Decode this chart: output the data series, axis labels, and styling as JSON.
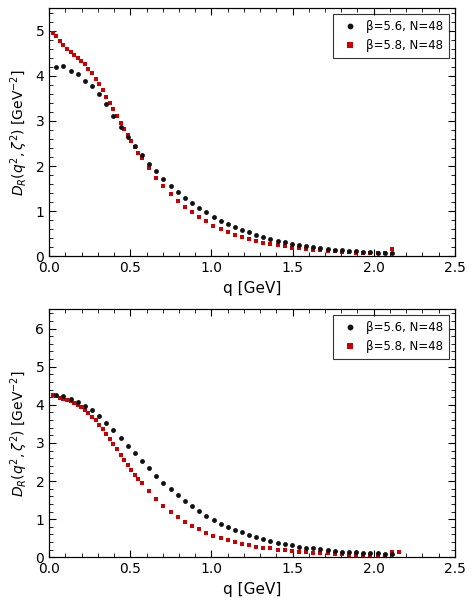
{
  "panel1": {
    "black_x": [
      0.044,
      0.088,
      0.132,
      0.175,
      0.22,
      0.262,
      0.308,
      0.352,
      0.396,
      0.44,
      0.484,
      0.528,
      0.572,
      0.617,
      0.66,
      0.704,
      0.748,
      0.792,
      0.836,
      0.88,
      0.924,
      0.968,
      1.013,
      1.057,
      1.1,
      1.144,
      1.188,
      1.232,
      1.276,
      1.32,
      1.364,
      1.408,
      1.452,
      1.496,
      1.54,
      1.584,
      1.628,
      1.672,
      1.716,
      1.76,
      1.804,
      1.848,
      1.892,
      1.936,
      1.98,
      2.024,
      2.068,
      2.112
    ],
    "black_y": [
      4.2,
      4.22,
      4.12,
      4.05,
      3.88,
      3.78,
      3.6,
      3.38,
      3.12,
      2.87,
      2.64,
      2.44,
      2.24,
      2.05,
      1.88,
      1.71,
      1.56,
      1.42,
      1.29,
      1.18,
      1.07,
      0.97,
      0.87,
      0.79,
      0.72,
      0.65,
      0.58,
      0.53,
      0.47,
      0.43,
      0.38,
      0.34,
      0.31,
      0.27,
      0.25,
      0.22,
      0.2,
      0.18,
      0.16,
      0.14,
      0.13,
      0.12,
      0.11,
      0.1,
      0.09,
      0.08,
      0.08,
      0.07
    ],
    "red_x": [
      0.022,
      0.044,
      0.066,
      0.088,
      0.11,
      0.132,
      0.154,
      0.176,
      0.198,
      0.22,
      0.242,
      0.264,
      0.286,
      0.308,
      0.33,
      0.352,
      0.374,
      0.396,
      0.418,
      0.44,
      0.462,
      0.484,
      0.506,
      0.528,
      0.55,
      0.572,
      0.616,
      0.66,
      0.704,
      0.748,
      0.792,
      0.836,
      0.88,
      0.924,
      0.968,
      1.012,
      1.056,
      1.1,
      1.144,
      1.188,
      1.232,
      1.276,
      1.32,
      1.364,
      1.408,
      1.452,
      1.496,
      1.54,
      1.584,
      1.628,
      1.672,
      1.716,
      1.76,
      1.804,
      1.848,
      1.892,
      1.936,
      1.98,
      2.024,
      2.068,
      2.112
    ],
    "red_y": [
      4.95,
      4.88,
      4.78,
      4.68,
      4.6,
      4.52,
      4.46,
      4.4,
      4.34,
      4.26,
      4.16,
      4.06,
      3.94,
      3.82,
      3.68,
      3.54,
      3.4,
      3.26,
      3.11,
      2.96,
      2.82,
      2.68,
      2.55,
      2.42,
      2.29,
      2.17,
      1.95,
      1.74,
      1.55,
      1.38,
      1.23,
      1.09,
      0.97,
      0.86,
      0.77,
      0.68,
      0.6,
      0.54,
      0.48,
      0.43,
      0.38,
      0.34,
      0.3,
      0.27,
      0.24,
      0.22,
      0.19,
      0.17,
      0.16,
      0.14,
      0.13,
      0.12,
      0.11,
      0.1,
      0.09,
      0.08,
      0.08,
      0.07,
      0.07,
      0.06,
      0.15
    ],
    "ylim": [
      0,
      5.5
    ],
    "yticks": [
      0,
      1,
      2,
      3,
      4,
      5
    ]
  },
  "panel2": {
    "black_x": [
      0.044,
      0.088,
      0.132,
      0.175,
      0.22,
      0.262,
      0.308,
      0.352,
      0.396,
      0.44,
      0.484,
      0.528,
      0.572,
      0.617,
      0.66,
      0.704,
      0.748,
      0.792,
      0.836,
      0.88,
      0.924,
      0.968,
      1.013,
      1.057,
      1.1,
      1.144,
      1.188,
      1.232,
      1.276,
      1.32,
      1.364,
      1.408,
      1.452,
      1.496,
      1.54,
      1.584,
      1.628,
      1.672,
      1.716,
      1.76,
      1.804,
      1.848,
      1.892,
      1.936,
      1.98,
      2.024,
      2.068,
      2.112
    ],
    "black_y": [
      4.25,
      4.22,
      4.15,
      4.08,
      3.98,
      3.85,
      3.7,
      3.52,
      3.33,
      3.13,
      2.93,
      2.73,
      2.53,
      2.33,
      2.14,
      1.96,
      1.79,
      1.63,
      1.48,
      1.34,
      1.21,
      1.09,
      0.98,
      0.88,
      0.8,
      0.72,
      0.65,
      0.58,
      0.52,
      0.47,
      0.42,
      0.38,
      0.34,
      0.31,
      0.28,
      0.25,
      0.23,
      0.21,
      0.18,
      0.17,
      0.15,
      0.14,
      0.13,
      0.12,
      0.11,
      0.1,
      0.09,
      0.09
    ],
    "red_x": [
      0.022,
      0.044,
      0.066,
      0.088,
      0.11,
      0.132,
      0.154,
      0.176,
      0.198,
      0.22,
      0.242,
      0.264,
      0.286,
      0.308,
      0.33,
      0.352,
      0.374,
      0.396,
      0.418,
      0.44,
      0.462,
      0.484,
      0.506,
      0.528,
      0.55,
      0.572,
      0.616,
      0.66,
      0.704,
      0.748,
      0.792,
      0.836,
      0.88,
      0.924,
      0.968,
      1.012,
      1.056,
      1.1,
      1.144,
      1.188,
      1.232,
      1.276,
      1.32,
      1.364,
      1.408,
      1.452,
      1.496,
      1.54,
      1.584,
      1.628,
      1.672,
      1.716,
      1.76,
      1.804,
      1.848,
      1.892,
      1.936,
      1.98,
      2.024,
      2.068,
      2.112,
      2.156
    ],
    "red_y": [
      4.25,
      4.22,
      4.19,
      4.16,
      4.12,
      4.09,
      4.05,
      4.0,
      3.94,
      3.86,
      3.78,
      3.69,
      3.59,
      3.48,
      3.36,
      3.24,
      3.11,
      2.97,
      2.83,
      2.69,
      2.56,
      2.42,
      2.29,
      2.17,
      2.05,
      1.94,
      1.73,
      1.53,
      1.35,
      1.19,
      1.05,
      0.93,
      0.82,
      0.73,
      0.64,
      0.57,
      0.51,
      0.45,
      0.4,
      0.36,
      0.32,
      0.28,
      0.25,
      0.23,
      0.2,
      0.18,
      0.16,
      0.15,
      0.13,
      0.12,
      0.11,
      0.1,
      0.09,
      0.08,
      0.07,
      0.07,
      0.06,
      0.06,
      0.06,
      0.05,
      0.15,
      0.14
    ],
    "ylim": [
      0,
      6.5
    ],
    "yticks": [
      0,
      1,
      2,
      3,
      4,
      5,
      6
    ]
  },
  "xlim": [
    0,
    2.5
  ],
  "xticks": [
    0.0,
    0.5,
    1.0,
    1.5,
    2.0,
    2.5
  ],
  "xlabel": "q [GeV]",
  "ylabel_r": "D",
  "black_color": "#111111",
  "red_color": "#cc0000",
  "marker_size": 3.5,
  "bg_color": "#ffffff",
  "legend_black": "β=5.6, N=48",
  "legend_red": "β=5.8, N=48"
}
